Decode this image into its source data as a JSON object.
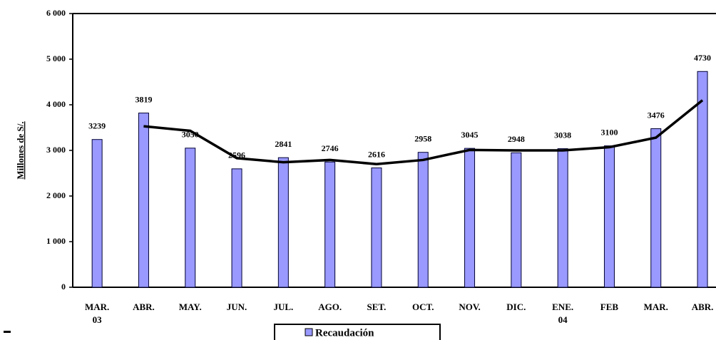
{
  "chart_data": {
    "type": "bar-line",
    "y_label": "Millones de S/.",
    "categories": [
      "MAR.\n03",
      "ABR.",
      "MAY.",
      "JUN.",
      "JUL.",
      "AGO.",
      "SET.",
      "OCT.",
      "NOV.",
      "DIC.",
      "ENE.\n04",
      "FEB",
      "MAR.",
      "ABR."
    ],
    "series": [
      {
        "name": "Recaudación",
        "type": "bar",
        "color": "#9999ff",
        "values": [
          3239,
          3819,
          3050,
          2596,
          2841,
          2746,
          2616,
          2958,
          3045,
          2948,
          3038,
          3100,
          3476,
          4730
        ]
      },
      {
        "type": "line",
        "color": "#000000",
        "values": [
          null,
          3530,
          3430,
          2830,
          2740,
          2790,
          2700,
          2790,
          3010,
          3000,
          3000,
          3070,
          3280,
          4100
        ]
      }
    ],
    "ylim": [
      0,
      6000
    ],
    "yticks": [
      {
        "value": 0,
        "label": "0"
      },
      {
        "value": 1000,
        "label": "1 000"
      },
      {
        "value": 2000,
        "label": "2 000"
      },
      {
        "value": 3000,
        "label": "3 000"
      },
      {
        "value": 4000,
        "label": "4 000"
      },
      {
        "value": 5000,
        "label": "5 000"
      },
      {
        "value": 6000,
        "label": "6 000"
      }
    ],
    "legend": "bottom"
  }
}
